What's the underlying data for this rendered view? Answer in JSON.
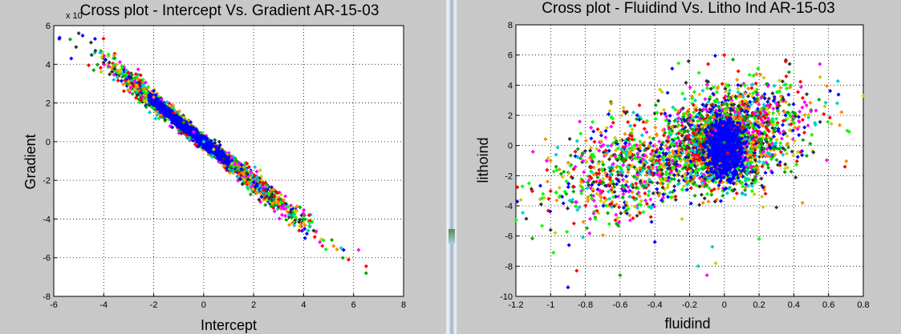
{
  "chart_data": [
    {
      "type": "scatter",
      "title": "Cross plot - Intercept Vs. Gradient AR-15-03",
      "xlabel": "Intercept",
      "ylabel": "Gradient",
      "y_exponent": "x 10",
      "xlim": [
        -6,
        8
      ],
      "ylim": [
        -8,
        6
      ],
      "xticks": [
        "-6",
        "-4",
        "-2",
        "0",
        "2",
        "4",
        "6",
        "8"
      ],
      "yticks": [
        "-8",
        "-6",
        "-4",
        "-2",
        "0",
        "2",
        "4",
        "6"
      ],
      "grid": true,
      "marker_colors": [
        "#0000ff",
        "#ff0000",
        "#00aa00",
        "#ff00ff",
        "#00cccc",
        "#cccc00",
        "#333333",
        "#00ff00",
        "#ff8800"
      ],
      "trend": {
        "slope": -1.05,
        "spread": 0.45
      },
      "points": [
        [
          -5.3,
          4.3
        ],
        [
          -4.6,
          3.95
        ],
        [
          -4.4,
          3.7
        ],
        [
          -3.8,
          3.9
        ],
        [
          -3.6,
          3.2
        ],
        [
          -3.0,
          3.1
        ],
        [
          -2.9,
          3.3
        ],
        [
          -2.4,
          2.6
        ],
        [
          -2.0,
          2.3
        ],
        [
          -1.6,
          1.9
        ],
        [
          -1.2,
          1.5
        ],
        [
          -0.8,
          1.0
        ],
        [
          -0.4,
          0.5
        ],
        [
          0.0,
          0.0
        ],
        [
          0.4,
          -0.4
        ],
        [
          0.8,
          -0.9
        ],
        [
          1.2,
          -1.3
        ],
        [
          1.6,
          -1.7
        ],
        [
          2.0,
          -2.1
        ],
        [
          2.4,
          -2.5
        ],
        [
          2.8,
          -3.0
        ],
        [
          3.2,
          -3.3
        ],
        [
          3.6,
          -3.8
        ],
        [
          4.0,
          -4.2
        ],
        [
          4.4,
          -4.6
        ],
        [
          4.8,
          -5.1
        ],
        [
          5.2,
          -5.4
        ],
        [
          5.6,
          -5.6
        ],
        [
          5.8,
          -6.1
        ],
        [
          6.5,
          -6.8
        ],
        [
          6.2,
          -5.6
        ],
        [
          5.5,
          -5.5
        ]
      ]
    },
    {
      "type": "scatter",
      "title": "Cross plot - Fluidind Vs. Litho Ind AR-15-03",
      "xlabel": "fluidind",
      "ylabel": "lithoind",
      "xlim": [
        -1.2,
        0.8
      ],
      "ylim": [
        -10,
        8
      ],
      "xticks": [
        "-1.2",
        "-1",
        "-0.8",
        "-0.6",
        "-0.4",
        "-0.2",
        "0",
        "0.2",
        "0.4",
        "0.6",
        "0.8"
      ],
      "yticks": [
        "-10",
        "-8",
        "-6",
        "-4",
        "-2",
        "0",
        "2",
        "4",
        "6",
        "8"
      ],
      "grid": true,
      "marker_colors": [
        "#0000ff",
        "#ff0000",
        "#00aa00",
        "#ff00ff",
        "#00cccc",
        "#cccc00",
        "#333333",
        "#00ff00",
        "#ff8800"
      ],
      "points": [
        [
          -0.9,
          -9.4
        ],
        [
          -0.85,
          -8.3
        ],
        [
          -0.6,
          -8.6
        ],
        [
          -0.1,
          -8.6
        ],
        [
          -0.15,
          -8.0
        ],
        [
          -0.05,
          -7.8
        ],
        [
          -1.0,
          -5.6
        ],
        [
          -1.05,
          -3.5
        ],
        [
          -1.0,
          -1.0
        ],
        [
          -0.3,
          5.1
        ],
        [
          0.0,
          6.0
        ],
        [
          0.05,
          5.7
        ],
        [
          0.55,
          5.4
        ],
        [
          0.65,
          2.8
        ],
        [
          0.8,
          3.3
        ],
        [
          0.3,
          -4.1
        ],
        [
          0.2,
          -6.2
        ],
        [
          0.45,
          -3.8
        ],
        [
          -0.4,
          -6.4
        ],
        [
          0.02,
          -0.5
        ],
        [
          0.0,
          0.2
        ],
        [
          -0.05,
          1.0
        ]
      ]
    }
  ]
}
